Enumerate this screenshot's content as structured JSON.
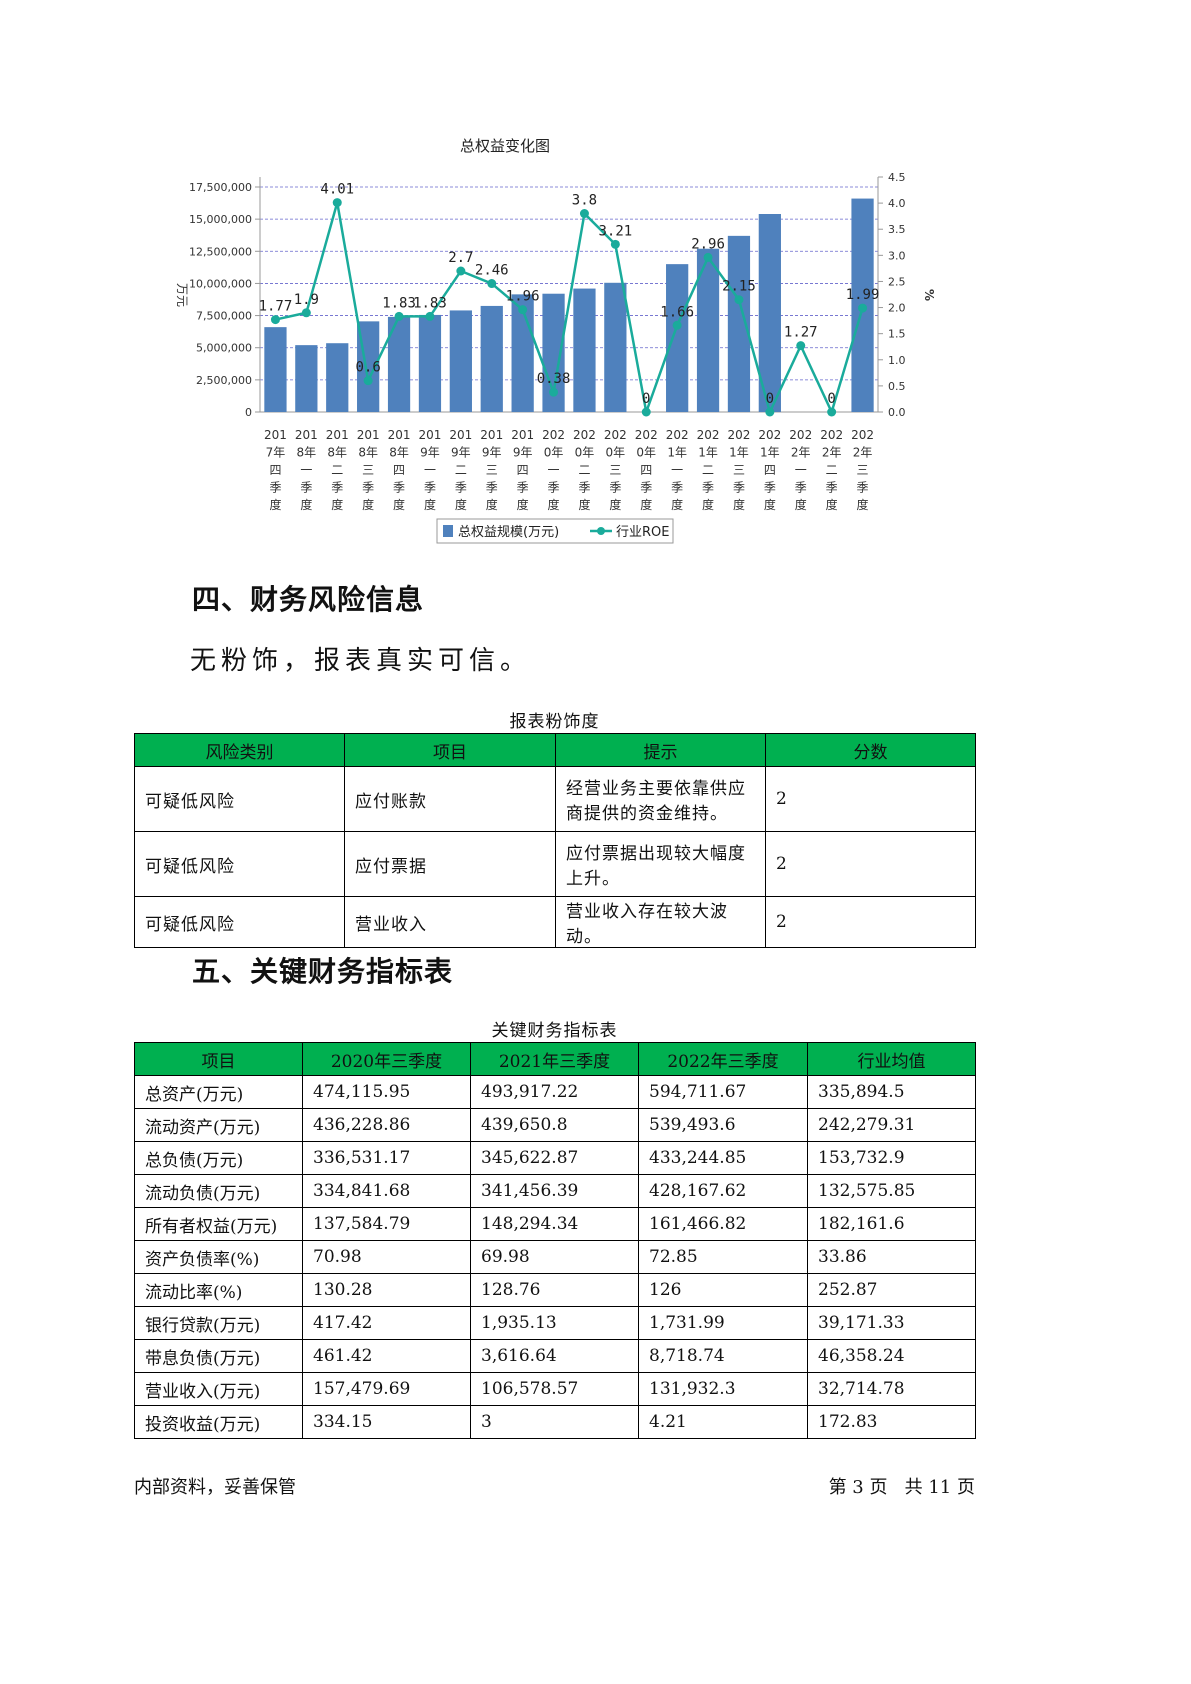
{
  "chart_data": {
    "type": "bar",
    "title": "总权益变化图",
    "ylabel": "万元",
    "y2label": "%",
    "ylim": [
      0,
      17500000
    ],
    "y2lim": [
      0,
      4.5
    ],
    "yticks": [
      "0",
      "2,500,000",
      "5,000,000",
      "7,500,000",
      "10,000,000",
      "12,500,000",
      "15,000,000",
      "17,500,000"
    ],
    "y2ticks": [
      "0.0",
      "0.5",
      "1.0",
      "1.5",
      "2.0",
      "2.5",
      "3.0",
      "3.5",
      "4.0",
      "4.5"
    ],
    "categories": [
      "2017年四季度",
      "2018年一季度",
      "2018年二季度",
      "2018年三季度",
      "2018年四季度",
      "2019年一季度",
      "2019年二季度",
      "2019年三季度",
      "2019年四季度",
      "2020年一季度",
      "2020年二季度",
      "2020年三季度",
      "2020年四季度",
      "2021年一季度",
      "2021年二季度",
      "2021年三季度",
      "2021年四季度",
      "2022年一季度",
      "2022年二季度",
      "2022年三季度"
    ],
    "series": [
      {
        "name": "总权益规模(万元)",
        "type": "bar",
        "color": "#4f81bd",
        "values": [
          6600000,
          5200000,
          5350000,
          7050000,
          7400000,
          7550000,
          7900000,
          8250000,
          9150000,
          9200000,
          9600000,
          10050000,
          0,
          11500000,
          12700000,
          13700000,
          15400000,
          0,
          0,
          16600000
        ]
      },
      {
        "name": "行业ROE",
        "type": "line",
        "color": "#1aab9b",
        "values": [
          1.77,
          1.9,
          4.01,
          0.6,
          1.83,
          1.83,
          2.7,
          2.46,
          1.96,
          0.38,
          3.8,
          3.21,
          0,
          1.66,
          2.96,
          2.15,
          0,
          1.27,
          0,
          1.99
        ],
        "labels": [
          "1.77",
          "1.9",
          "4.01",
          "0.6",
          "1.83",
          "1.83",
          "2.7",
          "2.46",
          "1.96",
          "0.38",
          "3.8",
          "3.21",
          "0",
          "1.66",
          "2.96",
          "2.15",
          "0",
          "1.27",
          "0",
          "1.99"
        ]
      }
    ],
    "grid": true,
    "legend": "bottom"
  },
  "section4": {
    "title": "四、财务风险信息",
    "text": "无粉饰，报表真实可信。",
    "table_caption": "报表粉饰度",
    "headers": [
      "风险类别",
      "项目",
      "提示",
      "分数"
    ],
    "rows": [
      [
        "可疑低风险",
        "应付账款",
        "经营业务主要依靠供应商提供的资金维持。",
        "2"
      ],
      [
        "可疑低风险",
        "应付票据",
        "应付票据出现较大幅度上升。",
        "2"
      ],
      [
        "可疑低风险",
        "营业收入",
        "营业收入存在较大波动。",
        "2"
      ]
    ]
  },
  "section5": {
    "title": "五、关键财务指标表",
    "table_caption": "关键财务指标表",
    "headers": [
      "项目",
      "2020年三季度",
      "2021年三季度",
      "2022年三季度",
      "行业均值"
    ],
    "rows": [
      [
        "总资产(万元)",
        "474,115.95",
        "493,917.22",
        "594,711.67",
        "335,894.5"
      ],
      [
        "流动资产(万元)",
        "436,228.86",
        "439,650.8",
        "539,493.6",
        "242,279.31"
      ],
      [
        "总负债(万元)",
        "336,531.17",
        "345,622.87",
        "433,244.85",
        "153,732.9"
      ],
      [
        "流动负债(万元)",
        "334,841.68",
        "341,456.39",
        "428,167.62",
        "132,575.85"
      ],
      [
        "所有者权益(万元)",
        "137,584.79",
        "148,294.34",
        "161,466.82",
        "182,161.6"
      ],
      [
        "资产负债率(%)",
        "70.98",
        "69.98",
        "72.85",
        "33.86"
      ],
      [
        "流动比率(%)",
        "130.28",
        "128.76",
        "126",
        "252.87"
      ],
      [
        "银行贷款(万元)",
        "417.42",
        "1,935.13",
        "1,731.99",
        "39,171.33"
      ],
      [
        "带息负债(万元)",
        "461.42",
        "3,616.64",
        "8,718.74",
        "46,358.24"
      ],
      [
        "营业收入(万元)",
        "157,479.69",
        "106,578.57",
        "131,932.3",
        "32,714.78"
      ],
      [
        "投资收益(万元)",
        "334.15",
        "3",
        "4.21",
        "172.83"
      ]
    ]
  },
  "footer": {
    "left": "内部资料，妥善保管",
    "right": "第 3 页   共 11 页"
  }
}
